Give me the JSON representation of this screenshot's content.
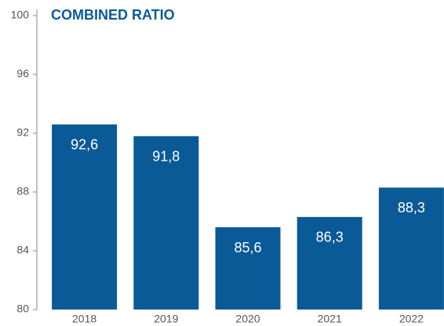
{
  "chart_data": {
    "type": "bar",
    "title": "COMBINED RATIO",
    "categories": [
      "2018",
      "2019",
      "2020",
      "2021",
      "2022"
    ],
    "values": [
      92.6,
      91.8,
      85.6,
      86.3,
      88.3
    ],
    "value_labels": [
      "92,6",
      "91,8",
      "85,6",
      "86,3",
      "88,3"
    ],
    "color": "#0b5a98",
    "ylim": [
      80,
      100
    ],
    "yticks": [
      80,
      84,
      88,
      92,
      96,
      100
    ],
    "grid": false
  }
}
